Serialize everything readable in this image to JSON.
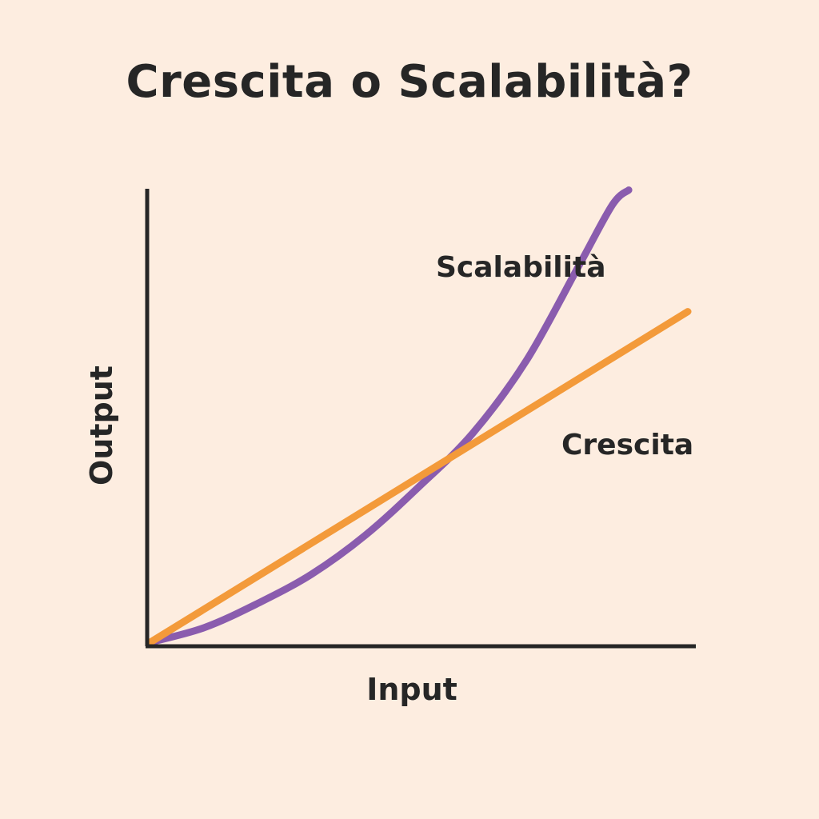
{
  "chart_data": {
    "type": "line",
    "title": "Crescita o Scalabilità?",
    "xlabel": "Input",
    "ylabel": "Output",
    "xlim": [
      0,
      10
    ],
    "ylim": [
      0,
      10
    ],
    "grid": false,
    "legend": "none",
    "series": [
      {
        "name": "Crescita",
        "color": "#F39A3A",
        "x": [
          0,
          10
        ],
        "y": [
          0,
          6.8
        ]
      },
      {
        "name": "Scalabilità",
        "color": "#8A5CAE",
        "x": [
          0,
          1,
          2,
          3,
          4,
          5,
          6,
          7,
          8,
          8.6,
          8.9
        ],
        "y": [
          0,
          0.3,
          0.8,
          1.4,
          2.2,
          3.2,
          4.3,
          5.8,
          7.8,
          9.0,
          9.3
        ]
      }
    ]
  }
}
